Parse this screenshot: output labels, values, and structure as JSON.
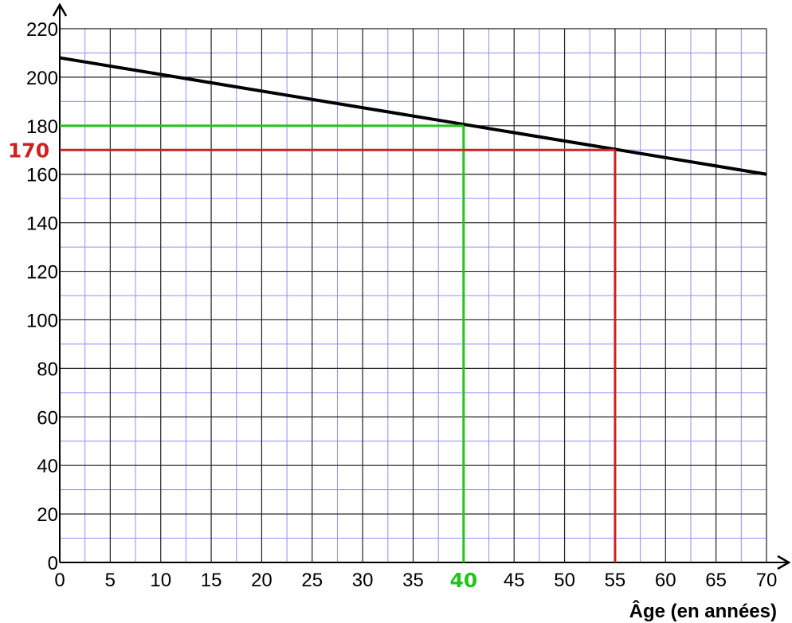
{
  "chart_data": {
    "type": "line",
    "title": "",
    "xlabel": "Âge (en années)",
    "ylabel": "",
    "xlim": [
      0,
      70
    ],
    "ylim": [
      0,
      220
    ],
    "x_ticks": [
      "0",
      "5",
      "10",
      "15",
      "20",
      "25",
      "30",
      "35",
      "40",
      "45",
      "50",
      "55",
      "60",
      "65",
      "70"
    ],
    "y_ticks": [
      "0",
      "20",
      "40",
      "60",
      "80",
      "100",
      "120",
      "140",
      "160",
      "180",
      "200",
      "220"
    ],
    "grid": "major every 5 (x) and 20 (y), minor every 2.5 (x) and 10 (y)",
    "series": [
      {
        "x": [
          0,
          70
        ],
        "y": [
          208,
          160
        ],
        "color": "#000000"
      }
    ],
    "annotations": [
      {
        "x": 40,
        "y": 180,
        "color": "#22c41f",
        "label_x": "40"
      },
      {
        "x": 55,
        "y": 170,
        "color": "#cc2222",
        "label_y": "170"
      }
    ]
  }
}
